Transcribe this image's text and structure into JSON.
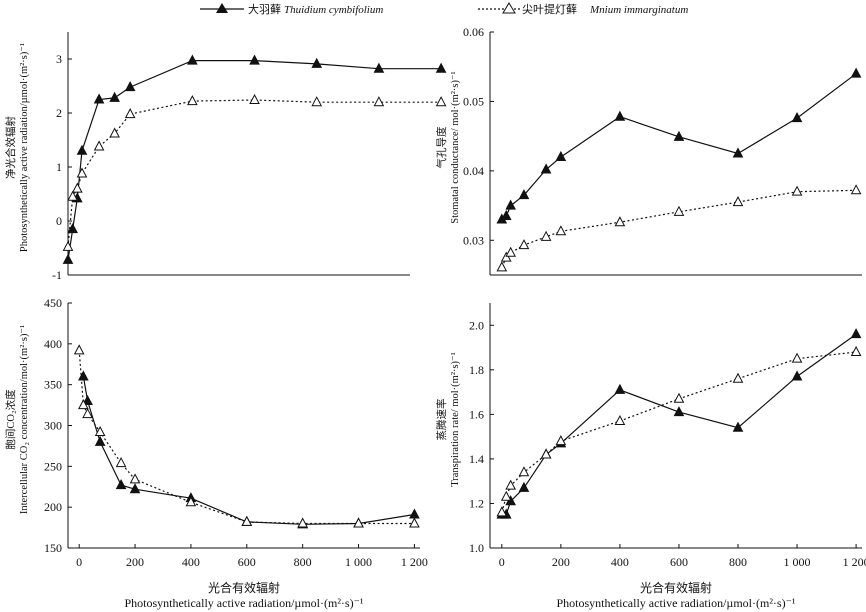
{
  "legend": {
    "series_a": {
      "cn": "大羽藓",
      "latin": "Thuidium cymbifolium"
    },
    "series_b": {
      "cn": "尖叶提灯藓",
      "latin": "Mnium immarginatum"
    }
  },
  "chart_data": [
    {
      "type": "line",
      "ylabel_cn": "净光合效辐射",
      "ylabel_en": "Photosynthetically active radiation/µmol·(m²·s)⁻¹",
      "ylim": [
        -1,
        3.5
      ],
      "yticks": [
        "-1",
        "0",
        "1",
        "2",
        "3"
      ],
      "ytick_values": [
        -1,
        0,
        1,
        2,
        3
      ],
      "xlim": [
        0,
        1100
      ],
      "xticks": [],
      "xlabel_cn": "",
      "xlabel_en": "",
      "series": [
        {
          "name": "Thuidium cymbifolium",
          "marker": "filled-triangle",
          "line": "solid",
          "x": [
            0,
            15,
            30,
            45,
            100,
            150,
            200,
            400,
            600,
            800,
            1000,
            1200
          ],
          "values": [
            -0.72,
            -0.15,
            0.42,
            1.3,
            2.25,
            2.28,
            2.48,
            2.97,
            2.97,
            2.91,
            2.82,
            2.82
          ]
        },
        {
          "name": "Mnium immarginatum",
          "marker": "open-triangle",
          "line": "dotted",
          "x": [
            0,
            15,
            30,
            45,
            100,
            150,
            200,
            400,
            600,
            800,
            1000,
            1200
          ],
          "values": [
            -0.48,
            0.45,
            0.6,
            0.88,
            1.38,
            1.62,
            1.98,
            2.22,
            2.24,
            2.2,
            2.2,
            2.2
          ]
        }
      ]
    },
    {
      "type": "line",
      "ylabel_cn": "气孔导度",
      "ylabel_en": "Stomatal conductance/ mol·(m²·s)⁻¹",
      "ylim": [
        0.025,
        0.06
      ],
      "yticks": [
        "0.03",
        "0.04",
        "0.05",
        "0.06"
      ],
      "ytick_values": [
        0.03,
        0.04,
        0.05,
        0.06
      ],
      "xlim": [
        -40,
        1220
      ],
      "xticks": [],
      "xlabel_cn": "",
      "xlabel_en": "",
      "series": [
        {
          "name": "Thuidium cymbifolium",
          "marker": "filled-triangle",
          "line": "solid",
          "x": [
            0,
            15,
            30,
            75,
            150,
            200,
            400,
            600,
            800,
            1000,
            1200
          ],
          "values": [
            0.033,
            0.0335,
            0.035,
            0.0365,
            0.0402,
            0.042,
            0.0478,
            0.0449,
            0.0425,
            0.0476,
            0.054
          ]
        },
        {
          "name": "Mnium immarginatum",
          "marker": "open-triangle",
          "line": "dotted",
          "x": [
            0,
            15,
            30,
            75,
            150,
            200,
            400,
            600,
            800,
            1000,
            1200
          ],
          "values": [
            0.0261,
            0.0275,
            0.0282,
            0.0293,
            0.0305,
            0.0313,
            0.0326,
            0.0341,
            0.0355,
            0.037,
            0.0372
          ]
        }
      ]
    },
    {
      "type": "line",
      "ylabel_cn": "胞间CO₂浓度",
      "ylabel_en": "Intercellular CO₂ concentration/mol·(m²·s)⁻¹",
      "ylim": [
        150,
        450
      ],
      "yticks": [
        "150",
        "200",
        "250",
        "300",
        "350",
        "400",
        "450"
      ],
      "ytick_values": [
        150,
        200,
        250,
        300,
        350,
        400,
        450
      ],
      "xlim": [
        -40,
        1220
      ],
      "xticks": [
        "0",
        "200",
        "400",
        "600",
        "800",
        "1 000",
        "1 200"
      ],
      "xtick_values": [
        0,
        200,
        400,
        600,
        800,
        1000,
        1200
      ],
      "xlabel_cn": "光合有效辐射",
      "xlabel_en": "Photosynthetically active radiation/µmol·(m²·s)⁻¹",
      "series": [
        {
          "name": "Thuidium cymbifolium",
          "marker": "filled-triangle",
          "line": "solid",
          "x": [
            15,
            30,
            75,
            150,
            200,
            400,
            600,
            800,
            1000,
            1200
          ],
          "values": [
            360,
            330,
            280,
            227,
            222,
            211,
            182,
            179,
            180,
            191
          ]
        },
        {
          "name": "Mnium immarginatum",
          "marker": "open-triangle",
          "line": "dotted",
          "x": [
            0,
            15,
            30,
            75,
            150,
            200,
            400,
            600,
            800,
            1000,
            1200
          ],
          "values": [
            392,
            325,
            314,
            292,
            254,
            234,
            206,
            182,
            180,
            180,
            180
          ]
        }
      ]
    },
    {
      "type": "line",
      "ylabel_cn": "蒸腾速率",
      "ylabel_en": "Transpiration rate/ mol·(m²·s)⁻¹",
      "ylim": [
        1.0,
        2.1
      ],
      "yticks": [
        "1.0",
        "1.2",
        "1.4",
        "1.6",
        "1.8",
        "2.0"
      ],
      "ytick_values": [
        1.0,
        1.2,
        1.4,
        1.6,
        1.8,
        2.0
      ],
      "xlim": [
        -40,
        1220
      ],
      "xticks": [
        "0",
        "200",
        "400",
        "600",
        "800",
        "1 000",
        "1 200"
      ],
      "xtick_values": [
        0,
        200,
        400,
        600,
        800,
        1000,
        1200
      ],
      "xlabel_cn": "光合有效辐射",
      "xlabel_en": "Photosynthetically active radiation/µmol·(m²·s)⁻¹",
      "series": [
        {
          "name": "Thuidium cymbifolium",
          "marker": "filled-triangle",
          "line": "solid",
          "x": [
            0,
            15,
            30,
            75,
            150,
            200,
            400,
            600,
            800,
            1000,
            1200
          ],
          "values": [
            1.15,
            1.15,
            1.21,
            1.27,
            1.42,
            1.47,
            1.71,
            1.61,
            1.54,
            1.77,
            1.96
          ]
        },
        {
          "name": "Mnium immarginatum",
          "marker": "open-triangle",
          "line": "dotted",
          "x": [
            0,
            15,
            30,
            75,
            150,
            200,
            400,
            600,
            800,
            1000,
            1200
          ],
          "values": [
            1.16,
            1.23,
            1.28,
            1.34,
            1.42,
            1.48,
            1.57,
            1.67,
            1.76,
            1.85,
            1.88
          ]
        }
      ]
    }
  ]
}
